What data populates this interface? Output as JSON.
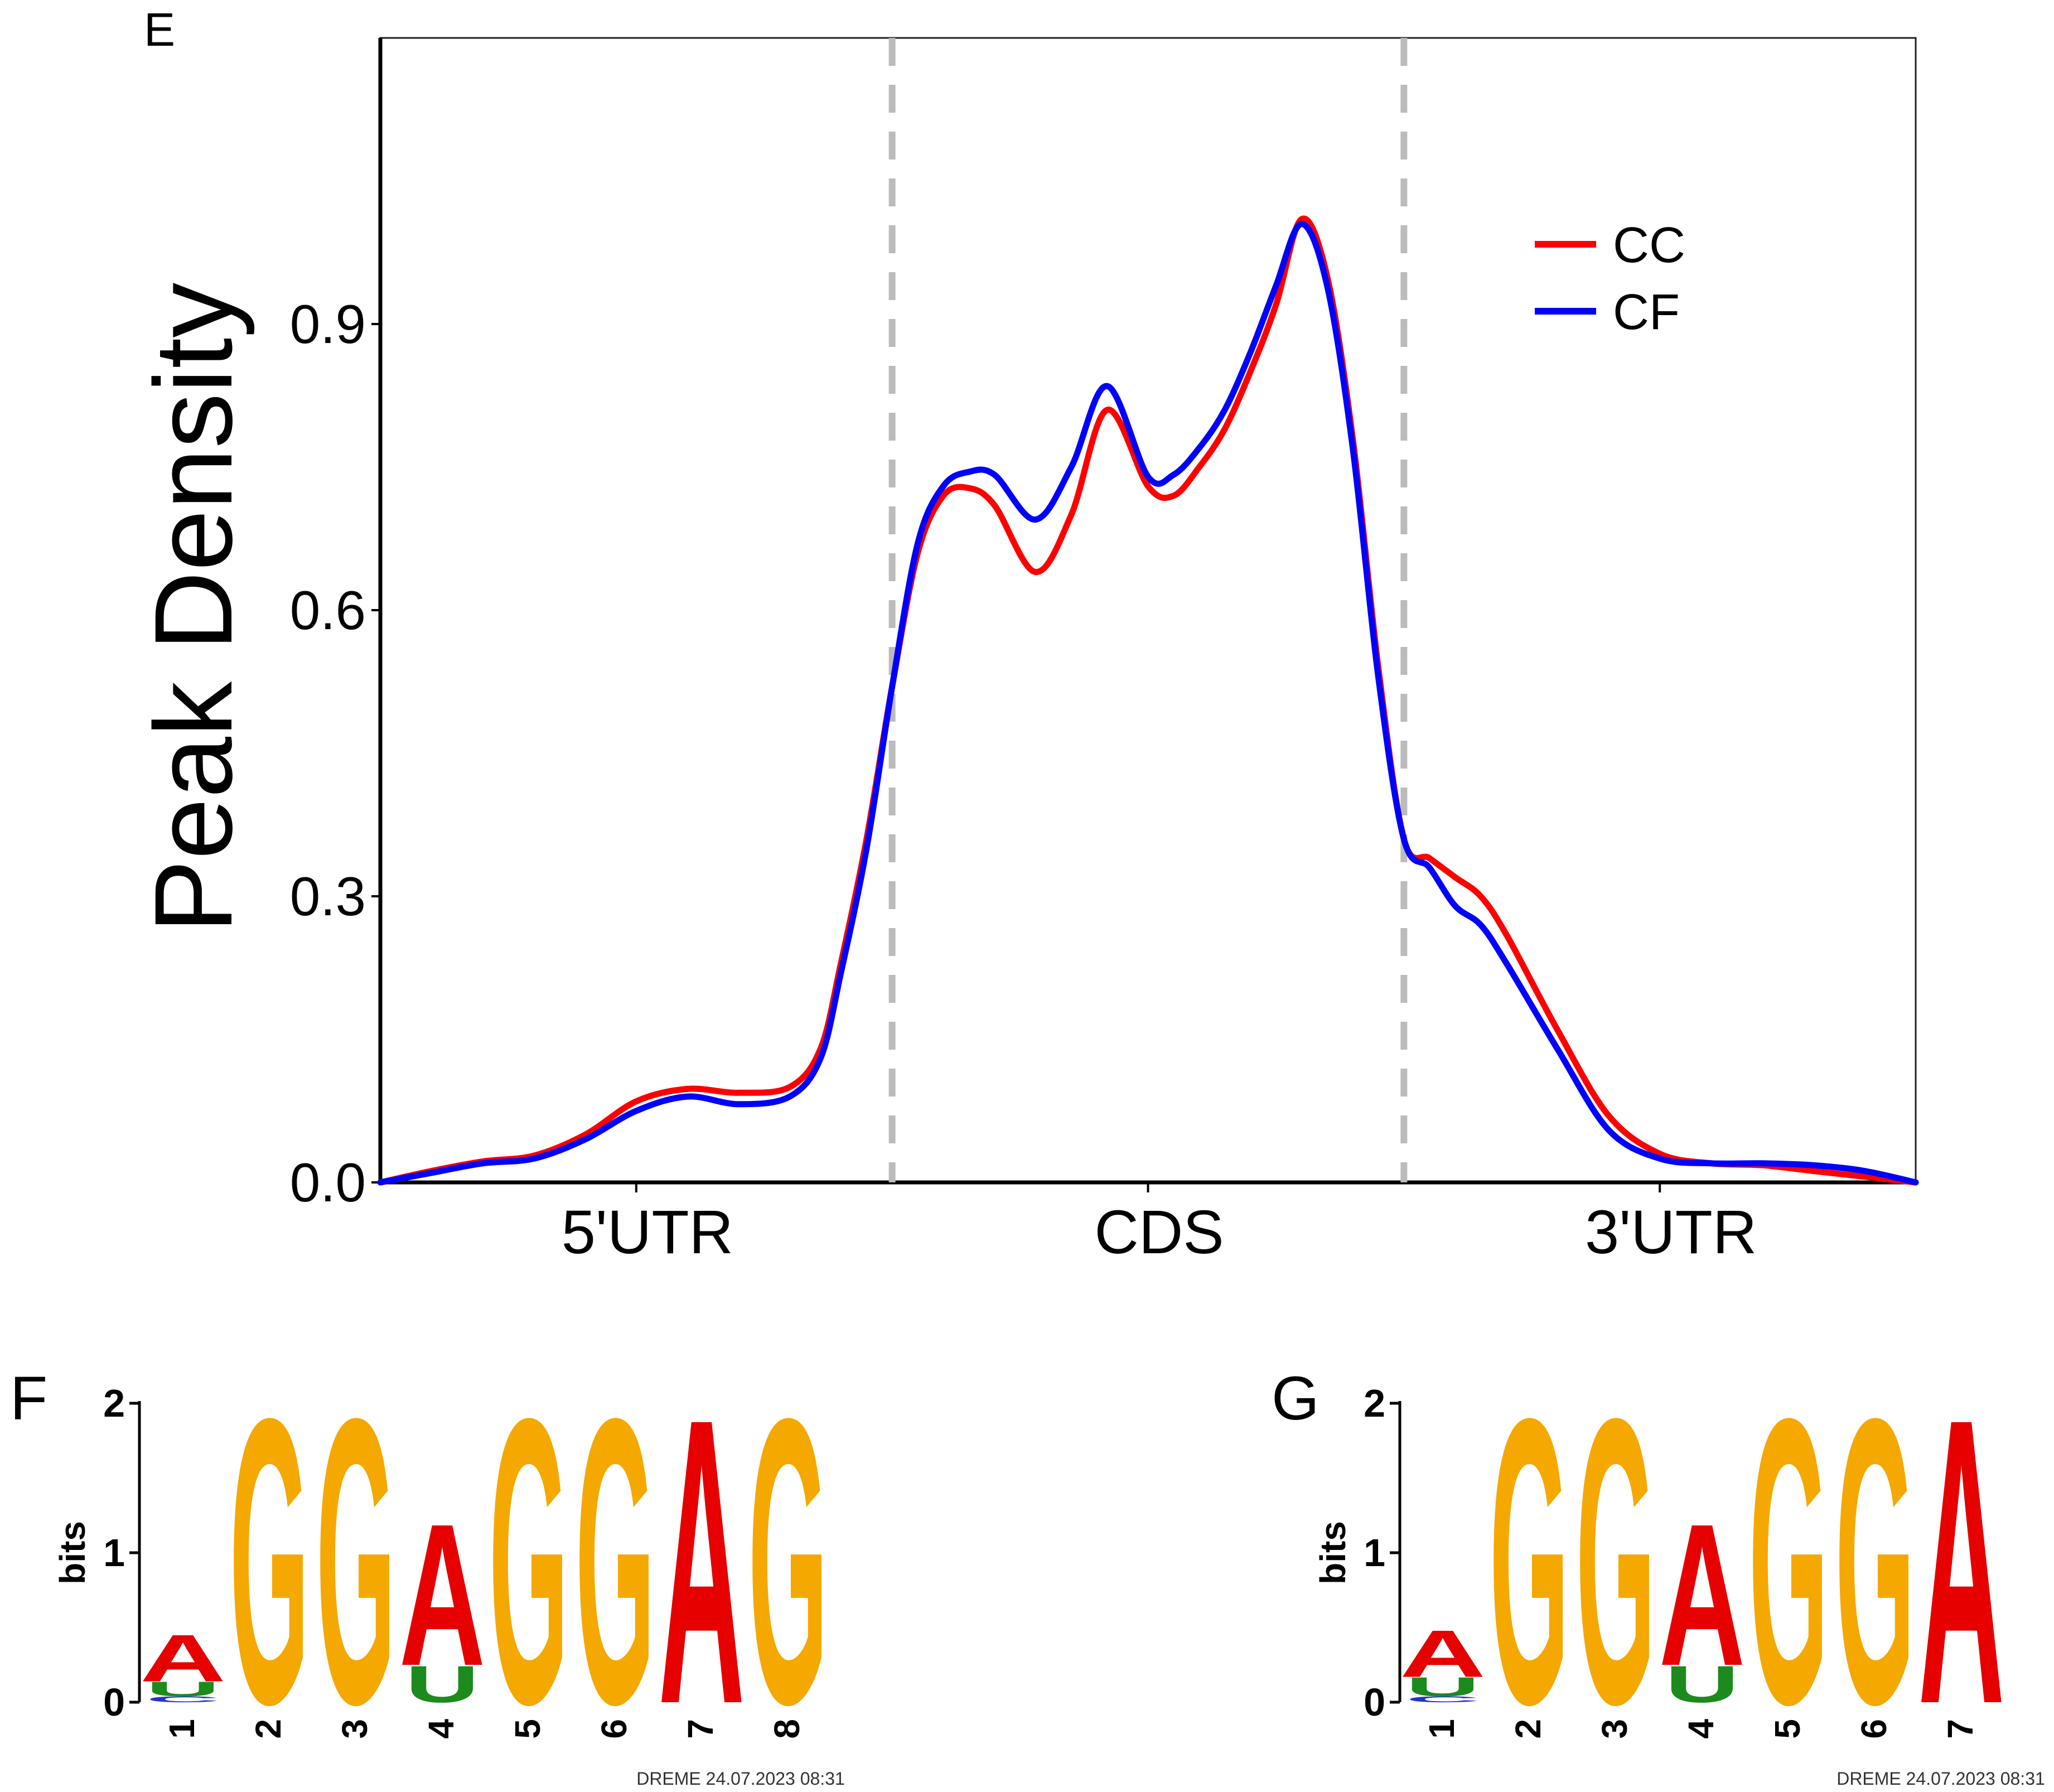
{
  "colors": {
    "cc": "#ff0000",
    "cf": "#0000ff",
    "divider": "#bbbbbb",
    "logo_a": "#e60000",
    "logo_g": "#f5a800",
    "logo_u": "#1d8a1d",
    "logo_c": "#2233cc"
  },
  "panel_e": {
    "label": "E",
    "chart_data": {
      "type": "line",
      "title": "",
      "xlabel": "",
      "ylabel": "Peak Density",
      "categories": [
        "5'UTR",
        "CDS",
        "3'UTR"
      ],
      "xlim": [
        0,
        3
      ],
      "ylim": [
        0,
        1.2
      ],
      "yticks": [
        "0.0",
        "0.3",
        "0.6",
        "0.9"
      ],
      "dividers": [
        1,
        2
      ],
      "legend": {
        "position": "top-right",
        "entries": [
          "CC",
          "CF"
        ]
      },
      "series": [
        {
          "name": "CC",
          "x": [
            0.0,
            0.1,
            0.2,
            0.3,
            0.4,
            0.5,
            0.6,
            0.7,
            0.8,
            0.86,
            0.9,
            0.95,
            1.0,
            1.05,
            1.1,
            1.15,
            1.2,
            1.28,
            1.35,
            1.42,
            1.5,
            1.55,
            1.6,
            1.65,
            1.7,
            1.75,
            1.8,
            1.85,
            1.9,
            1.95,
            2.0,
            2.05,
            2.1,
            2.15,
            2.2,
            2.3,
            2.4,
            2.5,
            2.6,
            2.7,
            2.8,
            2.9,
            3.0
          ],
          "y": [
            0.0,
            0.012,
            0.022,
            0.028,
            0.05,
            0.085,
            0.098,
            0.094,
            0.1,
            0.14,
            0.23,
            0.36,
            0.52,
            0.66,
            0.72,
            0.728,
            0.71,
            0.64,
            0.7,
            0.81,
            0.73,
            0.72,
            0.75,
            0.79,
            0.85,
            0.92,
            1.01,
            0.95,
            0.78,
            0.54,
            0.36,
            0.34,
            0.32,
            0.3,
            0.26,
            0.16,
            0.07,
            0.03,
            0.02,
            0.018,
            0.012,
            0.006,
            0.0
          ]
        },
        {
          "name": "CF",
          "x": [
            0.0,
            0.1,
            0.2,
            0.3,
            0.4,
            0.5,
            0.6,
            0.7,
            0.8,
            0.86,
            0.9,
            0.95,
            1.0,
            1.05,
            1.1,
            1.15,
            1.2,
            1.28,
            1.35,
            1.42,
            1.5,
            1.55,
            1.6,
            1.65,
            1.7,
            1.75,
            1.8,
            1.85,
            1.9,
            1.95,
            2.0,
            2.05,
            2.1,
            2.15,
            2.2,
            2.3,
            2.4,
            2.5,
            2.6,
            2.7,
            2.8,
            2.9,
            3.0
          ],
          "y": [
            0.0,
            0.01,
            0.02,
            0.025,
            0.045,
            0.075,
            0.09,
            0.082,
            0.09,
            0.13,
            0.22,
            0.35,
            0.52,
            0.67,
            0.73,
            0.745,
            0.742,
            0.695,
            0.75,
            0.835,
            0.74,
            0.742,
            0.77,
            0.81,
            0.87,
            0.94,
            1.005,
            0.94,
            0.77,
            0.53,
            0.36,
            0.33,
            0.29,
            0.27,
            0.23,
            0.14,
            0.055,
            0.025,
            0.02,
            0.02,
            0.018,
            0.012,
            0.0
          ]
        }
      ]
    }
  },
  "panel_f": {
    "label": "F",
    "ylabel": "bits",
    "yticks": [
      "0",
      "1",
      "2"
    ],
    "positions": [
      "1",
      "2",
      "3",
      "4",
      "5",
      "6",
      "7",
      "8"
    ],
    "footer": "DREME 24.07.2023 08:31",
    "chart_data": {
      "type": "sequence-logo",
      "ylabel": "bits",
      "ylim": [
        0,
        2
      ],
      "positions": [
        {
          "pos": "1",
          "stack": [
            {
              "letter": "C",
              "bits": 0.04
            },
            {
              "letter": "U",
              "bits": 0.1
            },
            {
              "letter": "A",
              "bits": 0.32
            }
          ]
        },
        {
          "pos": "2",
          "stack": [
            {
              "letter": "G",
              "bits": 1.95
            }
          ]
        },
        {
          "pos": "3",
          "stack": [
            {
              "letter": "G",
              "bits": 1.95
            }
          ]
        },
        {
          "pos": "4",
          "stack": [
            {
              "letter": "U",
              "bits": 0.25
            },
            {
              "letter": "A",
              "bits": 0.97
            }
          ]
        },
        {
          "pos": "5",
          "stack": [
            {
              "letter": "G",
              "bits": 1.95
            }
          ]
        },
        {
          "pos": "6",
          "stack": [
            {
              "letter": "G",
              "bits": 1.95
            }
          ]
        },
        {
          "pos": "7",
          "stack": [
            {
              "letter": "A",
              "bits": 1.95
            }
          ]
        },
        {
          "pos": "8",
          "stack": [
            {
              "letter": "G",
              "bits": 1.95
            }
          ]
        }
      ]
    }
  },
  "panel_g": {
    "label": "G",
    "ylabel": "bits",
    "yticks": [
      "0",
      "1",
      "2"
    ],
    "positions": [
      "1",
      "2",
      "3",
      "4",
      "5",
      "6",
      "7"
    ],
    "footer": "DREME 24.07.2023 08:31",
    "chart_data": {
      "type": "sequence-logo",
      "ylabel": "bits",
      "ylim": [
        0,
        2
      ],
      "positions": [
        {
          "pos": "1",
          "stack": [
            {
              "letter": "C",
              "bits": 0.04
            },
            {
              "letter": "U",
              "bits": 0.13
            },
            {
              "letter": "A",
              "bits": 0.32
            }
          ]
        },
        {
          "pos": "2",
          "stack": [
            {
              "letter": "G",
              "bits": 1.95
            }
          ]
        },
        {
          "pos": "3",
          "stack": [
            {
              "letter": "G",
              "bits": 1.95
            }
          ]
        },
        {
          "pos": "4",
          "stack": [
            {
              "letter": "U",
              "bits": 0.25
            },
            {
              "letter": "A",
              "bits": 0.97
            }
          ]
        },
        {
          "pos": "5",
          "stack": [
            {
              "letter": "G",
              "bits": 1.95
            }
          ]
        },
        {
          "pos": "6",
          "stack": [
            {
              "letter": "G",
              "bits": 1.95
            }
          ]
        },
        {
          "pos": "7",
          "stack": [
            {
              "letter": "A",
              "bits": 1.95
            }
          ]
        }
      ]
    }
  }
}
